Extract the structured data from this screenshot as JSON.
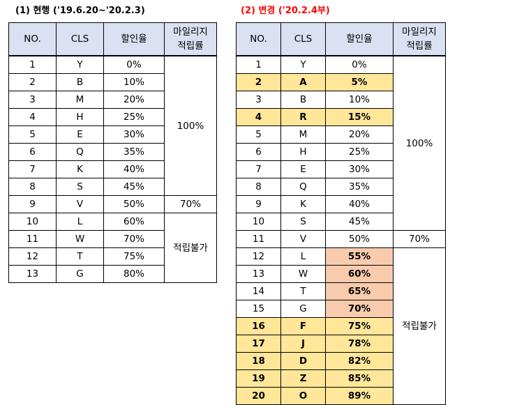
{
  "left": {
    "caption": "(1) 현행 ('19.6.20~'20.2.3)",
    "headers": {
      "no": "NO.",
      "cls": "CLS",
      "discount": "할인율",
      "mileage_line1": "마일리지",
      "mileage_line2": "적립률"
    },
    "rows": [
      {
        "no": "1",
        "cls": "Y",
        "discount": "0%"
      },
      {
        "no": "2",
        "cls": "B",
        "discount": "10%"
      },
      {
        "no": "3",
        "cls": "M",
        "discount": "20%"
      },
      {
        "no": "4",
        "cls": "H",
        "discount": "25%"
      },
      {
        "no": "5",
        "cls": "E",
        "discount": "30%"
      },
      {
        "no": "6",
        "cls": "Q",
        "discount": "35%"
      },
      {
        "no": "7",
        "cls": "K",
        "discount": "40%"
      },
      {
        "no": "8",
        "cls": "S",
        "discount": "45%"
      },
      {
        "no": "9",
        "cls": "V",
        "discount": "50%"
      },
      {
        "no": "10",
        "cls": "L",
        "discount": "60%"
      },
      {
        "no": "11",
        "cls": "W",
        "discount": "70%"
      },
      {
        "no": "12",
        "cls": "T",
        "discount": "75%"
      },
      {
        "no": "13",
        "cls": "G",
        "discount": "80%"
      }
    ],
    "mileage_groups": [
      {
        "label": "100%",
        "span": 8
      },
      {
        "label": "70%",
        "span": 1
      },
      {
        "label": "적립불가",
        "span": 4
      }
    ]
  },
  "right": {
    "caption": "(2) 변경 ('20.2.4부)",
    "caption_color": "#ff0000",
    "headers": {
      "no": "NO.",
      "cls": "CLS",
      "discount": "할인율",
      "mileage_line1": "마일리지",
      "mileage_line2": "적립률"
    },
    "rows": [
      {
        "no": "1",
        "cls": "Y",
        "discount": "0%",
        "hl": ""
      },
      {
        "no": "2",
        "cls": "A",
        "discount": "5%",
        "hl": "yellow-all"
      },
      {
        "no": "3",
        "cls": "B",
        "discount": "10%",
        "hl": ""
      },
      {
        "no": "4",
        "cls": "R",
        "discount": "15%",
        "hl": "yellow-all"
      },
      {
        "no": "5",
        "cls": "M",
        "discount": "20%",
        "hl": ""
      },
      {
        "no": "6",
        "cls": "H",
        "discount": "25%",
        "hl": ""
      },
      {
        "no": "7",
        "cls": "E",
        "discount": "30%",
        "hl": ""
      },
      {
        "no": "8",
        "cls": "Q",
        "discount": "35%",
        "hl": ""
      },
      {
        "no": "9",
        "cls": "K",
        "discount": "40%",
        "hl": ""
      },
      {
        "no": "10",
        "cls": "S",
        "discount": "45%",
        "hl": ""
      },
      {
        "no": "11",
        "cls": "V",
        "discount": "50%",
        "hl": ""
      },
      {
        "no": "12",
        "cls": "L",
        "discount": "55%",
        "hl": "orange-discount"
      },
      {
        "no": "13",
        "cls": "W",
        "discount": "60%",
        "hl": "orange-discount"
      },
      {
        "no": "14",
        "cls": "T",
        "discount": "65%",
        "hl": "orange-discount"
      },
      {
        "no": "15",
        "cls": "G",
        "discount": "70%",
        "hl": "orange-discount"
      },
      {
        "no": "16",
        "cls": "F",
        "discount": "75%",
        "hl": "yellow-all"
      },
      {
        "no": "17",
        "cls": "J",
        "discount": "78%",
        "hl": "yellow-all"
      },
      {
        "no": "18",
        "cls": "D",
        "discount": "82%",
        "hl": "yellow-all"
      },
      {
        "no": "19",
        "cls": "Z",
        "discount": "85%",
        "hl": "yellow-all"
      },
      {
        "no": "20",
        "cls": "O",
        "discount": "89%",
        "hl": "yellow-all"
      }
    ],
    "mileage_groups": [
      {
        "label": "100%",
        "span": 10
      },
      {
        "label": "70%",
        "span": 1
      },
      {
        "label": "적립불가",
        "span": 9
      }
    ]
  },
  "colors": {
    "header_bg": "#d9e1f2",
    "highlight_yellow": "#ffe699",
    "highlight_orange": "#f8cbad"
  }
}
